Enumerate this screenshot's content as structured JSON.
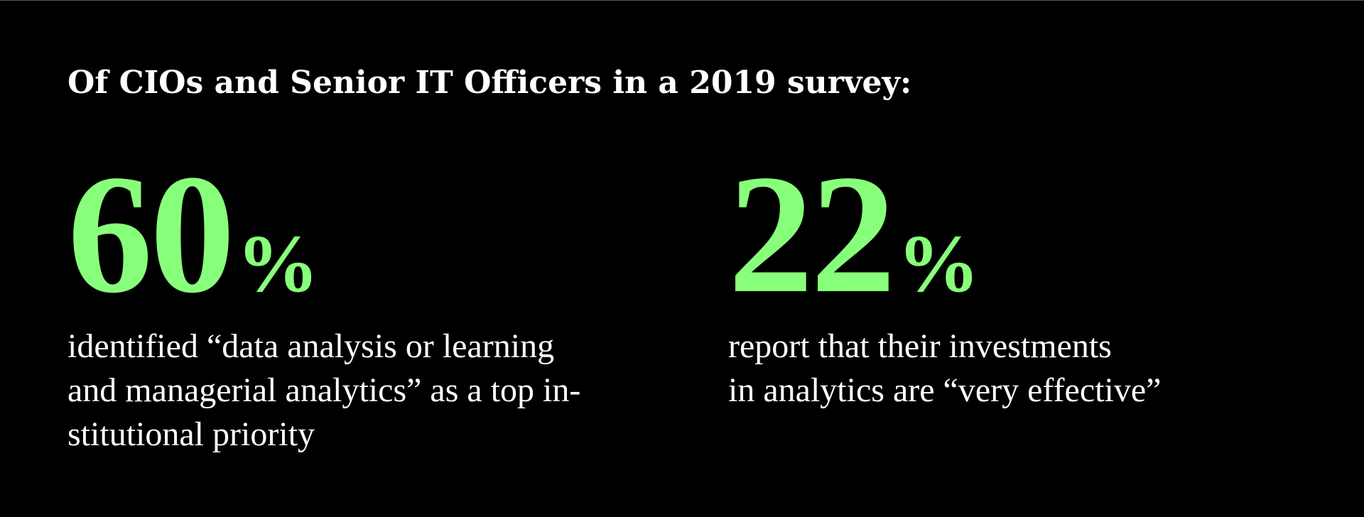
{
  "heading": "Of CIOs and Senior IT Officers in a 2019 survey:",
  "colors": {
    "background": "#000000",
    "accent": "#88ff7a",
    "text": "#ffffff"
  },
  "stats": [
    {
      "number": "60",
      "percent": "%",
      "caption_lines": [
        "identified “data analysis or learning",
        "and managerial analytics” as a top in-",
        "stitutional priority"
      ]
    },
    {
      "number": "22",
      "percent": "%",
      "caption_lines": [
        "report that their investments",
        "in analytics are “very effective”"
      ]
    }
  ]
}
